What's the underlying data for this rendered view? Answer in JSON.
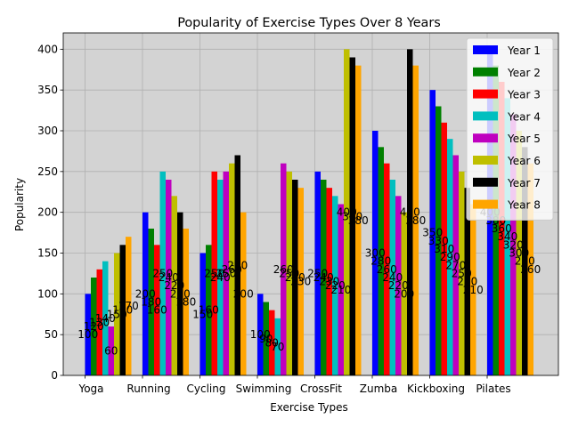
{
  "chart_data": {
    "type": "bar",
    "title": "Popularity of Exercise Types Over 8 Years",
    "xlabel": "Exercise Types",
    "ylabel": "Popularity",
    "ylim": [
      0,
      420
    ],
    "yticks": [
      0,
      50,
      100,
      150,
      200,
      250,
      300,
      350,
      400
    ],
    "grid": true,
    "legend_position": "top-right",
    "plot_background": "#d3d3d3",
    "categories": [
      "Yoga",
      "Running",
      "Cycling",
      "Swimming",
      "CrossFit",
      "Zumba",
      "Kickboxing",
      "Pilates"
    ],
    "series": [
      {
        "name": "Year 1",
        "color": "#0000ff",
        "values": [
          100,
          200,
          150,
          100,
          250,
          300,
          350,
          400
        ]
      },
      {
        "name": "Year 2",
        "color": "#008000",
        "values": [
          120,
          180,
          160,
          90,
          240,
          280,
          330,
          380
        ]
      },
      {
        "name": "Year 3",
        "color": "#ff0000",
        "values": [
          130,
          160,
          250,
          80,
          230,
          260,
          310,
          360
        ]
      },
      {
        "name": "Year 4",
        "color": "#00bfbf",
        "values": [
          140,
          250,
          240,
          70,
          220,
          240,
          290,
          340
        ]
      },
      {
        "name": "Year 5",
        "color": "#bf00bf",
        "values": [
          60,
          240,
          250,
          260,
          210,
          220,
          270,
          320
        ]
      },
      {
        "name": "Year 6",
        "color": "#bfbf00",
        "values": [
          150,
          220,
          260,
          250,
          400,
          200,
          250,
          300
        ]
      },
      {
        "name": "Year 7",
        "color": "#000000",
        "values": [
          160,
          200,
          270,
          240,
          390,
          400,
          230,
          280
        ]
      },
      {
        "name": "Year 8",
        "color": "#ffa500",
        "values": [
          170,
          180,
          200,
          230,
          380,
          380,
          210,
          260
        ]
      }
    ]
  }
}
